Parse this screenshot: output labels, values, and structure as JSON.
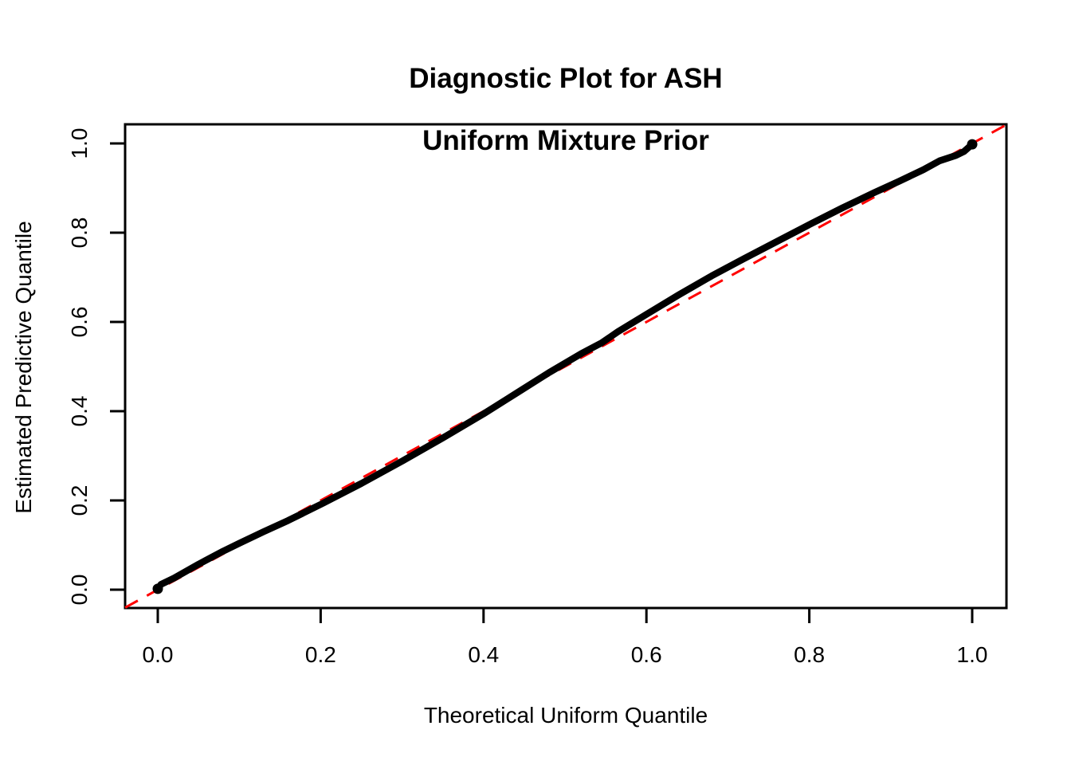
{
  "title": {
    "line1": "Diagnostic Plot for ASH",
    "line2": "Uniform Mixture Prior"
  },
  "chart_data": {
    "type": "line",
    "title": "Diagnostic Plot for ASH\nUniform Mixture Prior",
    "xlabel": "Theoretical Uniform Quantile",
    "ylabel": "Estimated Predictive Quantile",
    "xlim": [
      -0.04,
      1.04
    ],
    "ylim": [
      -0.04,
      1.04
    ],
    "grid": false,
    "legend": "none",
    "x_ticks": [
      0.0,
      0.2,
      0.4,
      0.6,
      0.8,
      1.0
    ],
    "x_tick_labels": [
      "0.0",
      "0.2",
      "0.4",
      "0.6",
      "0.8",
      "1.0"
    ],
    "y_ticks": [
      0.0,
      0.2,
      0.4,
      0.6,
      0.8,
      1.0
    ],
    "y_tick_labels": [
      "0.0",
      "0.2",
      "0.4",
      "0.6",
      "0.8",
      "1.0"
    ],
    "reference_line": {
      "slope": 1,
      "intercept": 0,
      "color": "#ff0000",
      "line_style": "dashed"
    },
    "series": [
      {
        "name": "estimated-vs-theoretical-quantiles",
        "color": "#000000",
        "line_width": 8.5,
        "points": [
          [
            0.0,
            0.002
          ],
          [
            0.004,
            0.012
          ],
          [
            0.02,
            0.026
          ],
          [
            0.05,
            0.057
          ],
          [
            0.08,
            0.086
          ],
          [
            0.1,
            0.104
          ],
          [
            0.13,
            0.13
          ],
          [
            0.16,
            0.155
          ],
          [
            0.2,
            0.191
          ],
          [
            0.25,
            0.238
          ],
          [
            0.3,
            0.288
          ],
          [
            0.35,
            0.34
          ],
          [
            0.4,
            0.394
          ],
          [
            0.44,
            0.44
          ],
          [
            0.48,
            0.486
          ],
          [
            0.52,
            0.529
          ],
          [
            0.545,
            0.553
          ],
          [
            0.565,
            0.578
          ],
          [
            0.6,
            0.617
          ],
          [
            0.64,
            0.661
          ],
          [
            0.68,
            0.703
          ],
          [
            0.72,
            0.742
          ],
          [
            0.76,
            0.78
          ],
          [
            0.8,
            0.818
          ],
          [
            0.84,
            0.855
          ],
          [
            0.88,
            0.89
          ],
          [
            0.91,
            0.915
          ],
          [
            0.94,
            0.941
          ],
          [
            0.96,
            0.961
          ],
          [
            0.98,
            0.973
          ],
          [
            0.99,
            0.982
          ],
          [
            1.0,
            0.998
          ]
        ]
      }
    ],
    "colors": {
      "curve": "#000000",
      "reference_line": "#ff0000",
      "axis": "#000000",
      "background": "#ffffff"
    }
  }
}
